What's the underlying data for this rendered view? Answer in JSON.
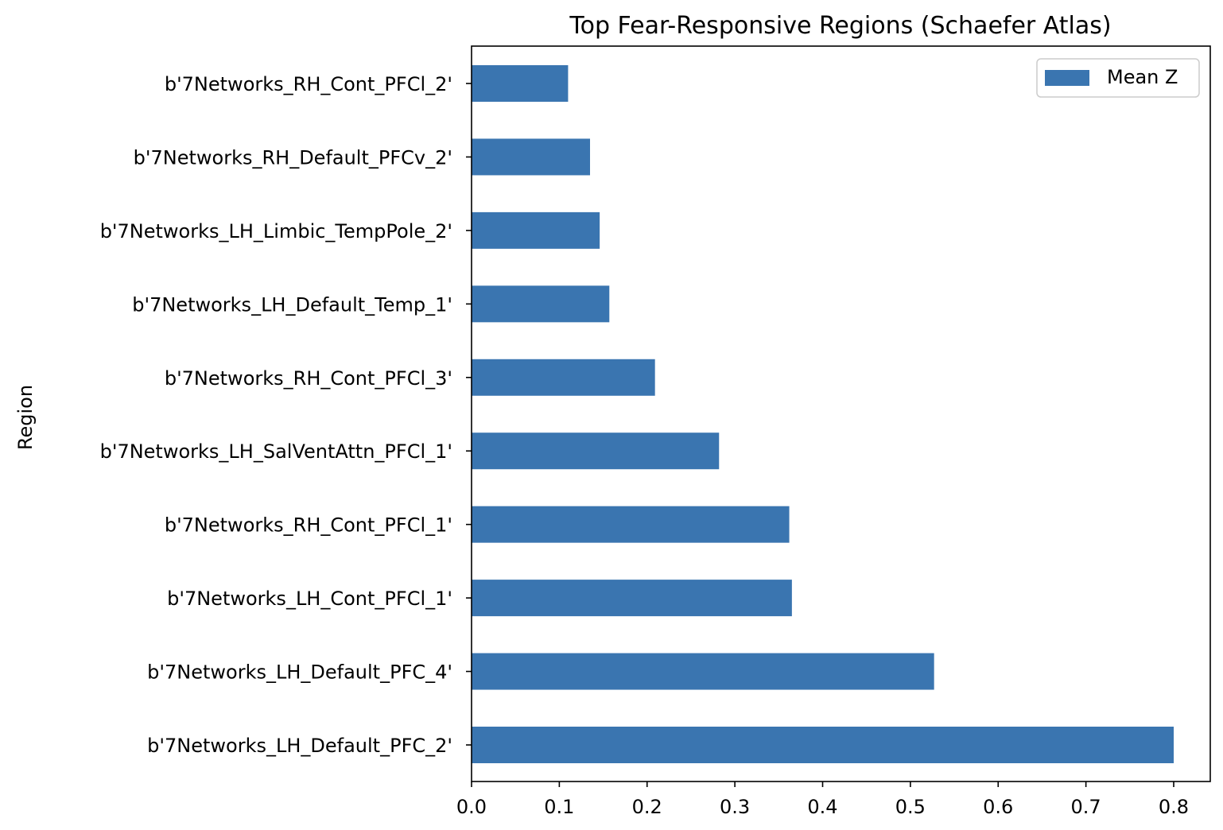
{
  "chart_data": {
    "type": "bar",
    "orientation": "horizontal",
    "title": "Top Fear-Responsive Regions (Schaefer Atlas)",
    "xlabel": "",
    "ylabel": "Region",
    "xlim": [
      0,
      0.8
    ],
    "xticks": [
      "0.0",
      "0.1",
      "0.2",
      "0.3",
      "0.4",
      "0.5",
      "0.6",
      "0.7",
      "0.8"
    ],
    "grid": false,
    "legend_position": "top-right",
    "bar_color": "#3a75b0",
    "categories": [
      "b'7Networks_RH_Cont_PFCl_2'",
      "b'7Networks_RH_Default_PFCv_2'",
      "b'7Networks_LH_Limbic_TempPole_2'",
      "b'7Networks_LH_Default_Temp_1'",
      "b'7Networks_RH_Cont_PFCl_3'",
      "b'7Networks_LH_SalVentAttn_PFCl_1'",
      "b'7Networks_RH_Cont_PFCl_1'",
      "b'7Networks_LH_Cont_PFCl_1'",
      "b'7Networks_LH_Default_PFC_4'",
      "b'7Networks_LH_Default_PFC_2'"
    ],
    "series": [
      {
        "name": "Mean Z",
        "values": [
          0.11,
          0.135,
          0.146,
          0.157,
          0.209,
          0.282,
          0.362,
          0.365,
          0.527,
          0.8
        ]
      }
    ]
  }
}
